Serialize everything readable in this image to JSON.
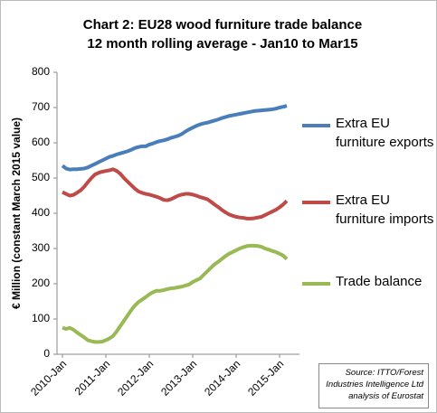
{
  "chart_data": {
    "type": "line",
    "title": "Chart 2: EU28 wood furniture trade balance",
    "subtitle": "12 month rolling average - Jan10 to Mar15",
    "y_label": "€ Million (constant March 2015 value)",
    "annotation": "Source: ITTO/Forest Industries Intelligence Ltd analysis of Eurostat",
    "categories": [
      "2010-Jan",
      null,
      null,
      null,
      null,
      null,
      null,
      null,
      null,
      null,
      null,
      null,
      "2011-Jan",
      null,
      null,
      null,
      null,
      null,
      null,
      null,
      null,
      null,
      null,
      null,
      "2012-Jan",
      null,
      null,
      null,
      null,
      null,
      null,
      null,
      null,
      null,
      null,
      null,
      "2013-Jan",
      null,
      null,
      null,
      null,
      null,
      null,
      null,
      null,
      null,
      null,
      null,
      "2014-Jan",
      null,
      null,
      null,
      null,
      null,
      null,
      null,
      null,
      null,
      null,
      null,
      "2015-Jan",
      null,
      null
    ],
    "series": [
      {
        "name": "Extra EU furniture exports",
        "color": "#4a7ebb",
        "values": [
          535,
          527,
          524,
          525,
          525,
          526,
          527,
          530,
          535,
          540,
          545,
          550,
          555,
          560,
          563,
          567,
          570,
          573,
          576,
          580,
          585,
          588,
          590,
          590,
          595,
          598,
          602,
          605,
          607,
          610,
          614,
          617,
          620,
          625,
          632,
          638,
          643,
          648,
          652,
          655,
          657,
          660,
          663,
          666,
          670,
          673,
          676,
          678,
          680,
          682,
          684,
          686,
          688,
          690,
          691,
          692,
          693,
          694,
          695,
          697,
          700,
          702,
          705
        ]
      },
      {
        "name": "Extra EU furniture imports",
        "color": "#be4b48",
        "values": [
          460,
          455,
          450,
          452,
          458,
          465,
          475,
          488,
          500,
          510,
          515,
          518,
          520,
          522,
          525,
          520,
          512,
          500,
          490,
          480,
          470,
          462,
          458,
          455,
          453,
          450,
          447,
          443,
          438,
          437,
          440,
          445,
          450,
          453,
          455,
          455,
          453,
          450,
          446,
          443,
          440,
          433,
          425,
          418,
          410,
          403,
          397,
          393,
          390,
          388,
          387,
          385,
          385,
          386,
          388,
          390,
          395,
          400,
          405,
          410,
          417,
          425,
          435
        ]
      },
      {
        "name": "Trade balance",
        "color": "#98b954",
        "values": [
          75,
          72,
          75,
          70,
          62,
          55,
          48,
          40,
          37,
          35,
          35,
          36,
          40,
          45,
          52,
          65,
          80,
          95,
          110,
          125,
          138,
          148,
          155,
          162,
          170,
          176,
          180,
          180,
          182,
          185,
          187,
          188,
          190,
          192,
          195,
          198,
          205,
          210,
          215,
          225,
          235,
          245,
          255,
          262,
          270,
          278,
          285,
          290,
          295,
          300,
          304,
          307,
          308,
          308,
          307,
          305,
          300,
          297,
          293,
          290,
          285,
          280,
          270
        ]
      }
    ],
    "ylim": [
      0,
      800
    ],
    "yticks": [
      0,
      100,
      200,
      300,
      400,
      500,
      600,
      700,
      800
    ],
    "grid": false
  }
}
